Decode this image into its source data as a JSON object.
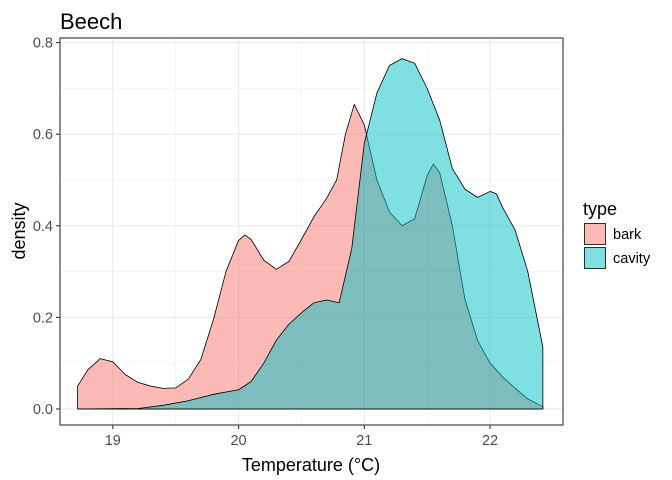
{
  "chart_data": {
    "type": "area",
    "title": "Beech",
    "xlabel": "Temperature (°C)",
    "ylabel": "density",
    "xlim": [
      18.58,
      22.58
    ],
    "ylim": [
      -0.035,
      0.81
    ],
    "x_ticks": [
      19,
      20,
      21,
      22
    ],
    "x_tick_labels": [
      "19",
      "20",
      "21",
      "22"
    ],
    "y_ticks": [
      0.0,
      0.2,
      0.4,
      0.6,
      0.8
    ],
    "y_tick_labels": [
      "0.0",
      "0.2",
      "0.4",
      "0.6",
      "0.8"
    ],
    "grid": true,
    "legend_title": "type",
    "legend_position": "right",
    "series": [
      {
        "name": "bark",
        "color": "#f8766d",
        "points": [
          [
            18.72,
            0.05
          ],
          [
            18.8,
            0.085
          ],
          [
            18.9,
            0.11
          ],
          [
            19.0,
            0.103
          ],
          [
            19.1,
            0.075
          ],
          [
            19.2,
            0.058
          ],
          [
            19.3,
            0.05
          ],
          [
            19.4,
            0.045
          ],
          [
            19.5,
            0.046
          ],
          [
            19.6,
            0.065
          ],
          [
            19.7,
            0.108
          ],
          [
            19.8,
            0.195
          ],
          [
            19.9,
            0.3
          ],
          [
            20.0,
            0.368
          ],
          [
            20.05,
            0.38
          ],
          [
            20.1,
            0.37
          ],
          [
            20.2,
            0.325
          ],
          [
            20.3,
            0.305
          ],
          [
            20.4,
            0.322
          ],
          [
            20.5,
            0.37
          ],
          [
            20.6,
            0.42
          ],
          [
            20.7,
            0.46
          ],
          [
            20.78,
            0.5
          ],
          [
            20.85,
            0.6
          ],
          [
            20.92,
            0.665
          ],
          [
            21.0,
            0.62
          ],
          [
            21.1,
            0.5
          ],
          [
            21.2,
            0.43
          ],
          [
            21.3,
            0.4
          ],
          [
            21.4,
            0.415
          ],
          [
            21.5,
            0.51
          ],
          [
            21.55,
            0.535
          ],
          [
            21.6,
            0.515
          ],
          [
            21.7,
            0.4
          ],
          [
            21.8,
            0.24
          ],
          [
            21.9,
            0.15
          ],
          [
            22.0,
            0.1
          ],
          [
            22.1,
            0.07
          ],
          [
            22.2,
            0.045
          ],
          [
            22.3,
            0.022
          ],
          [
            22.42,
            0.005
          ]
        ]
      },
      {
        "name": "cavity",
        "color": "#00bfc4",
        "points": [
          [
            18.72,
            0.0
          ],
          [
            19.2,
            0.001
          ],
          [
            19.4,
            0.008
          ],
          [
            19.6,
            0.018
          ],
          [
            19.8,
            0.032
          ],
          [
            20.0,
            0.042
          ],
          [
            20.1,
            0.06
          ],
          [
            20.2,
            0.1
          ],
          [
            20.3,
            0.15
          ],
          [
            20.4,
            0.185
          ],
          [
            20.5,
            0.21
          ],
          [
            20.6,
            0.232
          ],
          [
            20.7,
            0.238
          ],
          [
            20.8,
            0.232
          ],
          [
            20.9,
            0.35
          ],
          [
            21.0,
            0.58
          ],
          [
            21.1,
            0.69
          ],
          [
            21.2,
            0.75
          ],
          [
            21.3,
            0.765
          ],
          [
            21.4,
            0.755
          ],
          [
            21.5,
            0.7
          ],
          [
            21.6,
            0.63
          ],
          [
            21.7,
            0.525
          ],
          [
            21.8,
            0.48
          ],
          [
            21.9,
            0.462
          ],
          [
            22.0,
            0.475
          ],
          [
            22.05,
            0.47
          ],
          [
            22.1,
            0.44
          ],
          [
            22.2,
            0.39
          ],
          [
            22.3,
            0.3
          ],
          [
            22.42,
            0.135
          ]
        ]
      }
    ]
  }
}
